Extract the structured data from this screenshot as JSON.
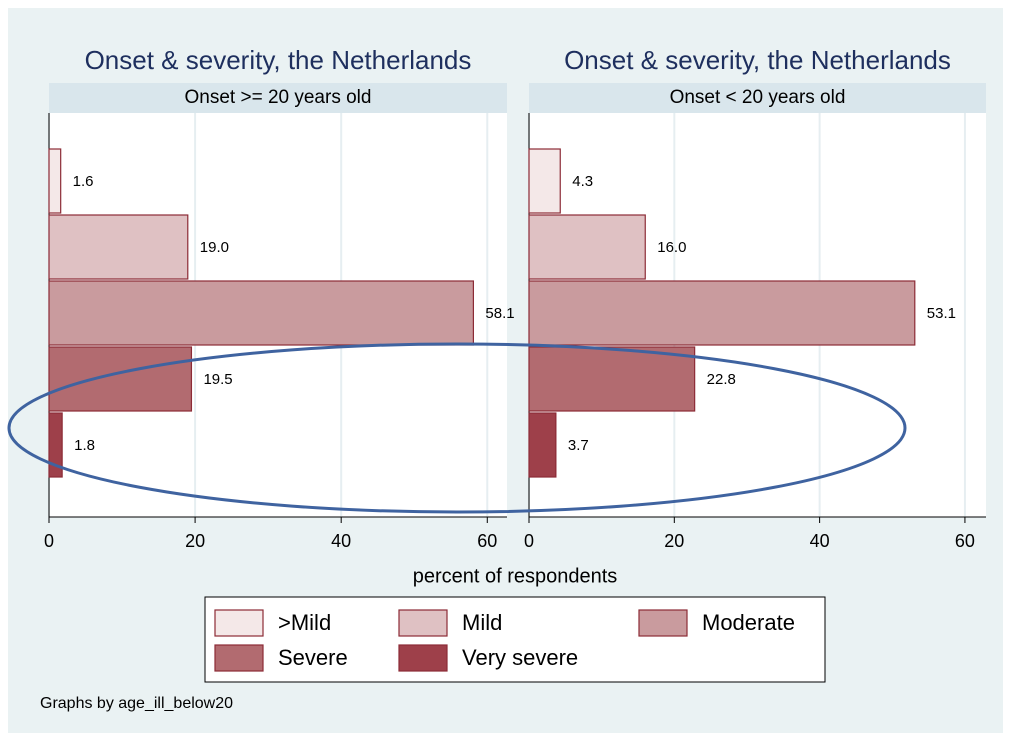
{
  "chart_data": [
    {
      "type": "bar",
      "orientation": "horizontal",
      "title": "Onset & severity, the Netherlands",
      "subtitle": "Onset >= 20 years old",
      "series": [
        {
          "name": ">Mild",
          "color": "#f4e8e8",
          "values": [
            1.6
          ],
          "value_labels": [
            "1.6"
          ]
        },
        {
          "name": "Mild",
          "color": "#dfc1c3",
          "values": [
            19.0
          ],
          "value_labels": [
            "19.0"
          ]
        },
        {
          "name": "Moderate",
          "color": "#c99b9e",
          "values": [
            58.1
          ],
          "value_labels": [
            "58.1"
          ]
        },
        {
          "name": "Severe",
          "color": "#b26b70",
          "values": [
            19.5
          ],
          "value_labels": [
            "19.5"
          ]
        },
        {
          "name": "Very severe",
          "color": "#9e404a",
          "values": [
            1.8
          ],
          "value_labels": [
            "1.8"
          ]
        }
      ],
      "xlim": [
        0,
        62.7
      ],
      "xticks": [
        0,
        20,
        40,
        60
      ],
      "grid": true
    },
    {
      "type": "bar",
      "orientation": "horizontal",
      "title": "Onset & severity, the Netherlands",
      "subtitle": "Onset < 20 years old",
      "series": [
        {
          "name": ">Mild",
          "color": "#f4e8e8",
          "values": [
            4.3
          ],
          "value_labels": [
            "4.3"
          ]
        },
        {
          "name": "Mild",
          "color": "#dfc1c3",
          "values": [
            16.0
          ],
          "value_labels": [
            "16.0"
          ]
        },
        {
          "name": "Moderate",
          "color": "#c99b9e",
          "values": [
            53.1
          ],
          "value_labels": [
            "53.1"
          ]
        },
        {
          "name": "Severe",
          "color": "#b26b70",
          "values": [
            22.8
          ],
          "value_labels": [
            "22.8"
          ]
        },
        {
          "name": "Very severe",
          "color": "#9e404a",
          "values": [
            3.7
          ],
          "value_labels": [
            "3.7"
          ]
        }
      ],
      "xlim": [
        0,
        62.9
      ],
      "xticks": [
        0,
        20,
        40,
        60
      ],
      "grid": true
    }
  ],
  "xlabel": "percent of respondents",
  "note": "Graphs by age_ill_below20"
}
